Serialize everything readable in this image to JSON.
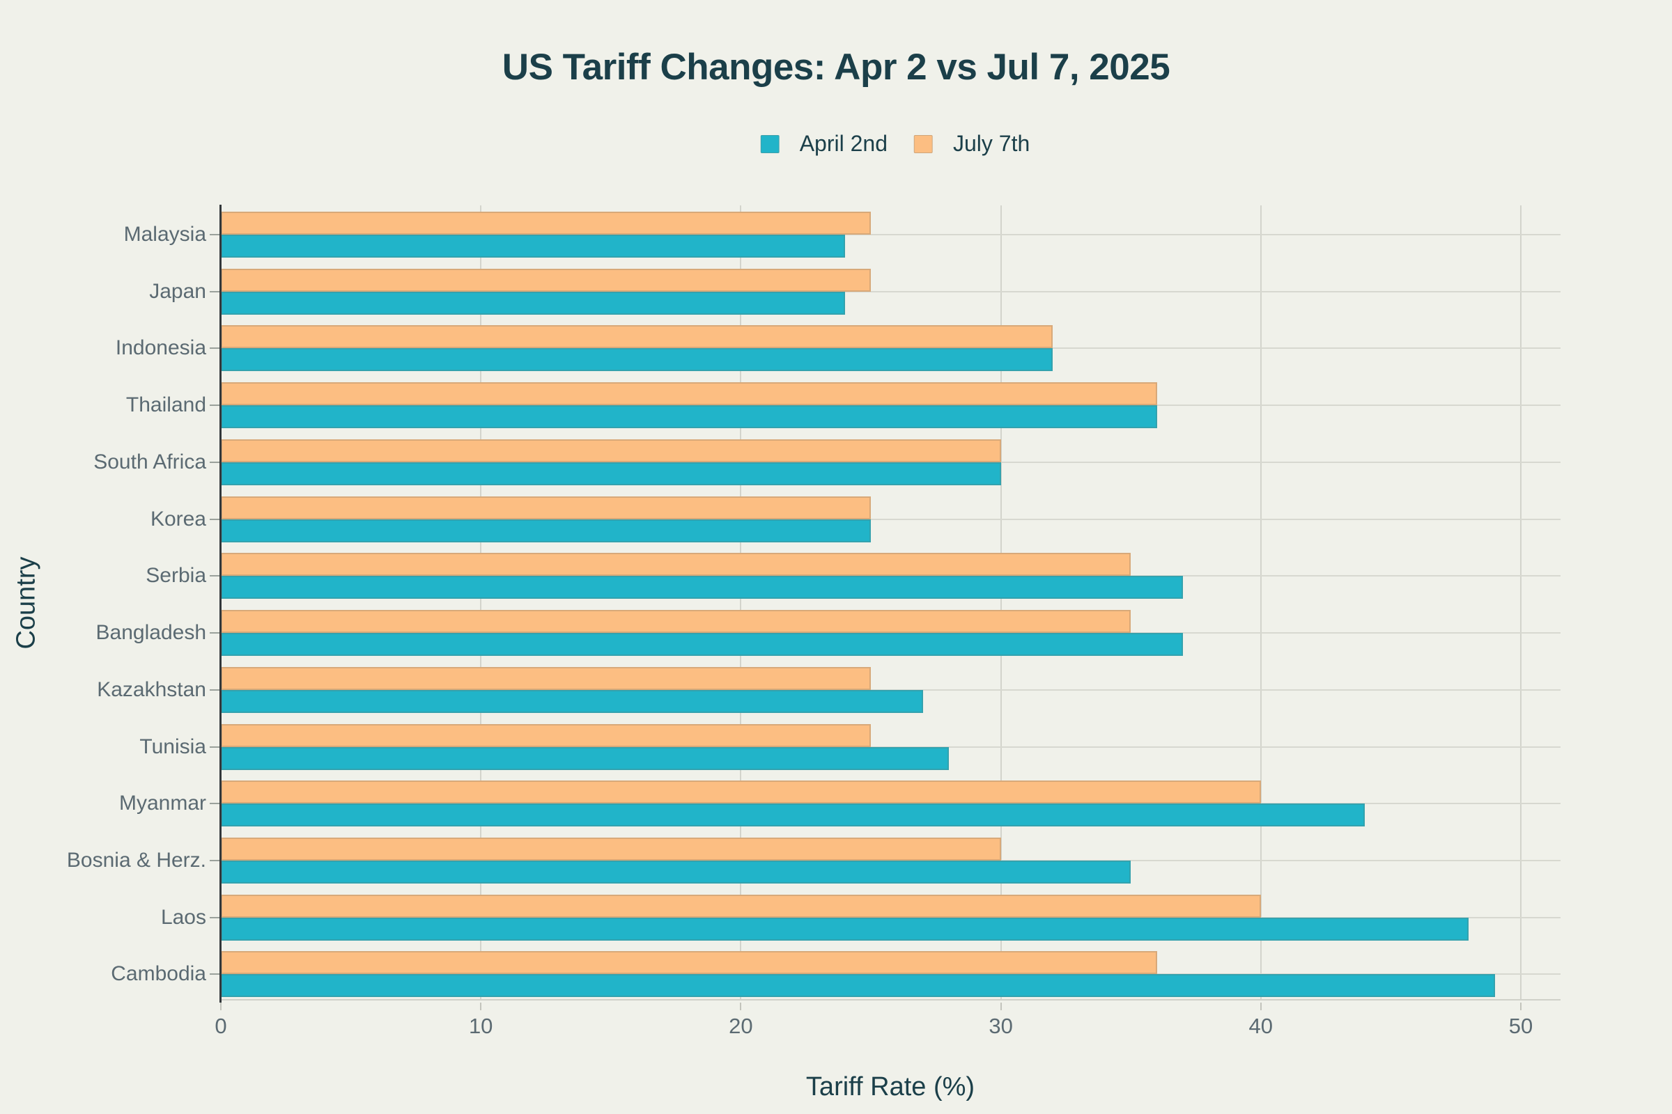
{
  "page": {
    "background_color": "#f0f1ea"
  },
  "chart_data": {
    "type": "bar",
    "orientation": "horizontal",
    "title": "US Tariff Changes: Apr 2 vs Jul 7, 2025",
    "xlabel": "Tariff Rate (%)",
    "ylabel": "Country",
    "categories": [
      "Malaysia",
      "Japan",
      "Indonesia",
      "Thailand",
      "South Africa",
      "Korea",
      "Serbia",
      "Bangladesh",
      "Kazakhstan",
      "Tunisia",
      "Myanmar",
      "Bosnia & Herz.",
      "Laos",
      "Cambodia"
    ],
    "series": [
      {
        "name": "April 2nd",
        "color": "#21b4c9",
        "values": [
          24,
          24,
          32,
          36,
          30,
          25,
          37,
          37,
          27,
          28,
          44,
          35,
          48,
          49
        ]
      },
      {
        "name": "July 7th",
        "color": "#fcbe82",
        "values": [
          25,
          25,
          32,
          36,
          30,
          25,
          35,
          35,
          25,
          25,
          40,
          30,
          40,
          36
        ]
      }
    ],
    "x_ticks": [
      0,
      10,
      20,
      30,
      40,
      50
    ],
    "xlim": [
      0,
      51.5
    ],
    "grid": true,
    "legend_position": "top-center",
    "colors": {
      "title_text": "#1b3f49",
      "axis_label_text": "#5b6a72",
      "gridline": "#d3d4cc",
      "y_axis_line": "#33383b"
    }
  }
}
